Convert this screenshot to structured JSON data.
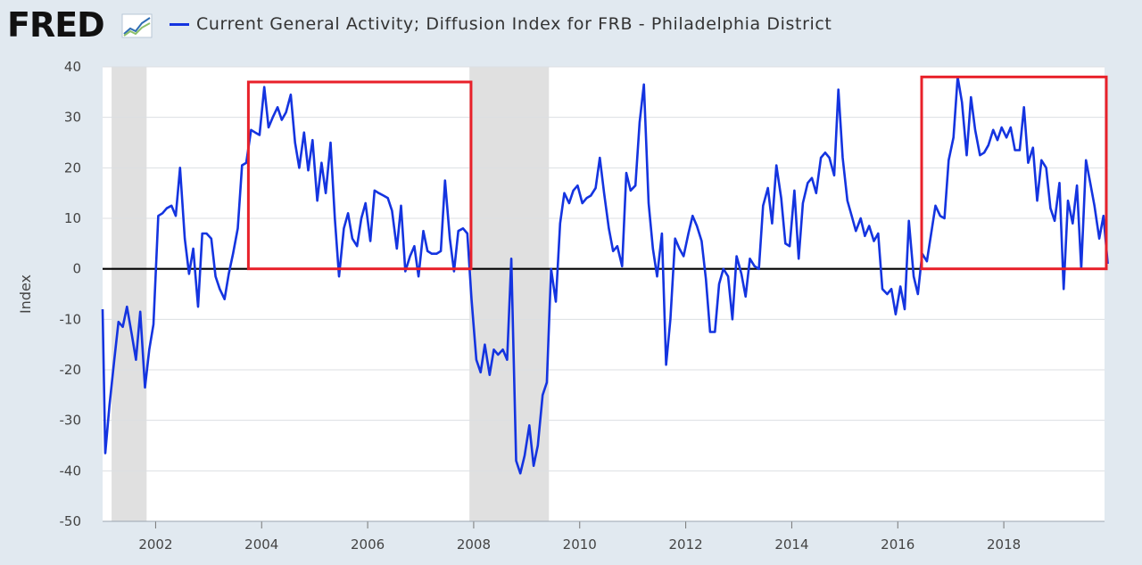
{
  "header": {
    "logo_text": "FRED",
    "series_title": "Current General Activity; Diffusion Index for FRB - Philadelphia District"
  },
  "colors": {
    "series": "#1434e0",
    "zero_line": "#000000",
    "highlight_box": "#e8212a",
    "recession": "#e0e0e0",
    "plot_bg": "#ffffff",
    "page_bg": "#e1e9f0"
  },
  "chart_data": {
    "type": "line",
    "ylabel": "Index",
    "xlabel": "",
    "ylim": [
      -50,
      40
    ],
    "xlim": [
      2001.0,
      2019.9
    ],
    "y_ticks": [
      40,
      30,
      20,
      10,
      0,
      -10,
      -20,
      -30,
      -40,
      -50
    ],
    "x_ticks": [
      "2002",
      "2004",
      "2006",
      "2008",
      "2010",
      "2012",
      "2014",
      "2016",
      "2018"
    ],
    "grid": true,
    "zero_line": true,
    "recessions": [
      [
        2001.17,
        2001.83
      ],
      [
        2007.92,
        2009.42
      ]
    ],
    "highlight_boxes": [
      {
        "x": [
          2003.75,
          2007.95
        ],
        "y": [
          0,
          37
        ]
      },
      {
        "x": [
          2016.45,
          2019.95
        ],
        "y": [
          0,
          38
        ]
      }
    ],
    "series": [
      {
        "name": "Current General Activity; Diffusion Index for FRB - Philadelphia District",
        "points": [
          [
            2001.0,
            -8
          ],
          [
            2001.05,
            -36.5
          ],
          [
            2001.13,
            -27
          ],
          [
            2001.22,
            -18
          ],
          [
            2001.3,
            -10.5
          ],
          [
            2001.38,
            -11.5
          ],
          [
            2001.46,
            -7.5
          ],
          [
            2001.55,
            -13
          ],
          [
            2001.63,
            -18
          ],
          [
            2001.71,
            -8.5
          ],
          [
            2001.8,
            -23.5
          ],
          [
            2001.88,
            -16
          ],
          [
            2001.96,
            -11
          ],
          [
            2002.05,
            10.5
          ],
          [
            2002.13,
            11
          ],
          [
            2002.21,
            12
          ],
          [
            2002.3,
            12.5
          ],
          [
            2002.38,
            10.5
          ],
          [
            2002.46,
            20
          ],
          [
            2002.55,
            6
          ],
          [
            2002.63,
            -1
          ],
          [
            2002.71,
            4
          ],
          [
            2002.8,
            -7.5
          ],
          [
            2002.88,
            7
          ],
          [
            2002.96,
            7
          ],
          [
            2003.05,
            6
          ],
          [
            2003.13,
            -1.5
          ],
          [
            2003.21,
            -4
          ],
          [
            2003.3,
            -6
          ],
          [
            2003.38,
            -1
          ],
          [
            2003.46,
            3
          ],
          [
            2003.55,
            8
          ],
          [
            2003.63,
            20.5
          ],
          [
            2003.71,
            21
          ],
          [
            2003.8,
            27.5
          ],
          [
            2003.88,
            27
          ],
          [
            2003.96,
            26.5
          ],
          [
            2004.05,
            36
          ],
          [
            2004.13,
            28
          ],
          [
            2004.21,
            30
          ],
          [
            2004.3,
            32
          ],
          [
            2004.38,
            29.5
          ],
          [
            2004.46,
            31
          ],
          [
            2004.55,
            34.5
          ],
          [
            2004.63,
            25
          ],
          [
            2004.71,
            20
          ],
          [
            2004.8,
            27
          ],
          [
            2004.88,
            19.5
          ],
          [
            2004.96,
            25.5
          ],
          [
            2005.05,
            13.5
          ],
          [
            2005.13,
            21
          ],
          [
            2005.21,
            15
          ],
          [
            2005.3,
            25
          ],
          [
            2005.38,
            10
          ],
          [
            2005.46,
            -1.5
          ],
          [
            2005.55,
            8
          ],
          [
            2005.63,
            11
          ],
          [
            2005.71,
            6
          ],
          [
            2005.8,
            4.5
          ],
          [
            2005.88,
            10
          ],
          [
            2005.96,
            13
          ],
          [
            2006.05,
            5.5
          ],
          [
            2006.13,
            15.5
          ],
          [
            2006.21,
            15
          ],
          [
            2006.3,
            14.5
          ],
          [
            2006.38,
            14
          ],
          [
            2006.46,
            11.5
          ],
          [
            2006.55,
            4
          ],
          [
            2006.63,
            12.5
          ],
          [
            2006.71,
            -0.5
          ],
          [
            2006.8,
            2.5
          ],
          [
            2006.88,
            4.5
          ],
          [
            2006.96,
            -1.5
          ],
          [
            2007.05,
            7.5
          ],
          [
            2007.13,
            3.5
          ],
          [
            2007.21,
            3
          ],
          [
            2007.3,
            3
          ],
          [
            2007.38,
            3.5
          ],
          [
            2007.46,
            17.5
          ],
          [
            2007.55,
            6
          ],
          [
            2007.63,
            -0.5
          ],
          [
            2007.71,
            7.5
          ],
          [
            2007.8,
            8
          ],
          [
            2007.88,
            7
          ],
          [
            2007.96,
            -6
          ],
          [
            2008.05,
            -18
          ],
          [
            2008.13,
            -20.5
          ],
          [
            2008.21,
            -15
          ],
          [
            2008.3,
            -21
          ],
          [
            2008.38,
            -16
          ],
          [
            2008.46,
            -17
          ],
          [
            2008.55,
            -16
          ],
          [
            2008.63,
            -18
          ],
          [
            2008.71,
            2
          ],
          [
            2008.8,
            -38
          ],
          [
            2008.88,
            -40.5
          ],
          [
            2008.96,
            -37
          ],
          [
            2009.05,
            -31
          ],
          [
            2009.13,
            -39
          ],
          [
            2009.21,
            -35
          ],
          [
            2009.3,
            -25
          ],
          [
            2009.38,
            -22.5
          ],
          [
            2009.46,
            0
          ],
          [
            2009.55,
            -6.5
          ],
          [
            2009.63,
            9
          ],
          [
            2009.71,
            15
          ],
          [
            2009.8,
            13
          ],
          [
            2009.88,
            15.5
          ],
          [
            2009.96,
            16.5
          ],
          [
            2010.05,
            13
          ],
          [
            2010.13,
            14
          ],
          [
            2010.21,
            14.5
          ],
          [
            2010.3,
            16
          ],
          [
            2010.38,
            22
          ],
          [
            2010.46,
            15
          ],
          [
            2010.55,
            8
          ],
          [
            2010.63,
            3.5
          ],
          [
            2010.71,
            4.5
          ],
          [
            2010.8,
            0.5
          ],
          [
            2010.88,
            19
          ],
          [
            2010.96,
            15.5
          ],
          [
            2011.05,
            16.5
          ],
          [
            2011.13,
            29
          ],
          [
            2011.21,
            36.5
          ],
          [
            2011.3,
            13
          ],
          [
            2011.38,
            4
          ],
          [
            2011.46,
            -1.5
          ],
          [
            2011.55,
            7
          ],
          [
            2011.63,
            -19
          ],
          [
            2011.71,
            -10
          ],
          [
            2011.8,
            6
          ],
          [
            2011.88,
            4
          ],
          [
            2011.96,
            2.5
          ],
          [
            2012.05,
            7
          ],
          [
            2012.13,
            10.5
          ],
          [
            2012.21,
            8.5
          ],
          [
            2012.3,
            5.5
          ],
          [
            2012.38,
            -2
          ],
          [
            2012.46,
            -12.5
          ],
          [
            2012.55,
            -12.5
          ],
          [
            2012.63,
            -3
          ],
          [
            2012.71,
            0
          ],
          [
            2012.8,
            -1.5
          ],
          [
            2012.88,
            -10
          ],
          [
            2012.96,
            2.5
          ],
          [
            2013.05,
            -1
          ],
          [
            2013.13,
            -5.5
          ],
          [
            2013.21,
            2
          ],
          [
            2013.3,
            0.5
          ],
          [
            2013.38,
            0
          ],
          [
            2013.46,
            12.5
          ],
          [
            2013.55,
            16
          ],
          [
            2013.63,
            9
          ],
          [
            2013.71,
            20.5
          ],
          [
            2013.8,
            14
          ],
          [
            2013.88,
            5
          ],
          [
            2013.96,
            4.5
          ],
          [
            2014.05,
            15.5
          ],
          [
            2014.13,
            2
          ],
          [
            2014.21,
            13
          ],
          [
            2014.3,
            17
          ],
          [
            2014.38,
            18
          ],
          [
            2014.46,
            15
          ],
          [
            2014.55,
            22
          ],
          [
            2014.63,
            23
          ],
          [
            2014.71,
            22
          ],
          [
            2014.8,
            18.5
          ],
          [
            2014.88,
            35.5
          ],
          [
            2014.96,
            22
          ],
          [
            2015.05,
            13.5
          ],
          [
            2015.13,
            10.5
          ],
          [
            2015.21,
            7.5
          ],
          [
            2015.3,
            10
          ],
          [
            2015.38,
            6.5
          ],
          [
            2015.46,
            8.5
          ],
          [
            2015.55,
            5.5
          ],
          [
            2015.63,
            7
          ],
          [
            2015.71,
            -4
          ],
          [
            2015.8,
            -5
          ],
          [
            2015.88,
            -4
          ],
          [
            2015.96,
            -9
          ],
          [
            2016.05,
            -3.5
          ],
          [
            2016.13,
            -8
          ],
          [
            2016.21,
            9.5
          ],
          [
            2016.3,
            -1.5
          ],
          [
            2016.38,
            -5
          ],
          [
            2016.46,
            3
          ],
          [
            2016.55,
            1.5
          ],
          [
            2016.63,
            7
          ],
          [
            2016.71,
            12.5
          ],
          [
            2016.8,
            10.5
          ],
          [
            2016.88,
            10
          ],
          [
            2016.96,
            21.5
          ],
          [
            2017.05,
            26
          ],
          [
            2017.13,
            38
          ],
          [
            2017.21,
            33
          ],
          [
            2017.3,
            22.5
          ],
          [
            2017.38,
            34
          ],
          [
            2017.46,
            27.5
          ],
          [
            2017.55,
            22.5
          ],
          [
            2017.63,
            23
          ],
          [
            2017.71,
            24.5
          ],
          [
            2017.8,
            27.5
          ],
          [
            2017.88,
            25.5
          ],
          [
            2017.96,
            28
          ],
          [
            2018.05,
            26
          ],
          [
            2018.13,
            28
          ],
          [
            2018.21,
            23.5
          ],
          [
            2018.3,
            23.5
          ],
          [
            2018.38,
            32
          ],
          [
            2018.46,
            21
          ],
          [
            2018.55,
            24
          ],
          [
            2018.63,
            13.5
          ],
          [
            2018.71,
            21.5
          ],
          [
            2018.8,
            20
          ],
          [
            2018.88,
            12
          ],
          [
            2018.96,
            9.5
          ],
          [
            2019.05,
            17
          ],
          [
            2019.13,
            -4
          ],
          [
            2019.21,
            13.5
          ],
          [
            2019.3,
            9
          ],
          [
            2019.38,
            16.5
          ],
          [
            2019.46,
            0
          ],
          [
            2019.55,
            21.5
          ],
          [
            2019.63,
            17
          ],
          [
            2019.71,
            12.5
          ],
          [
            2019.8,
            6
          ],
          [
            2019.88,
            10.5
          ],
          [
            2019.96,
            1
          ]
        ]
      }
    ]
  }
}
